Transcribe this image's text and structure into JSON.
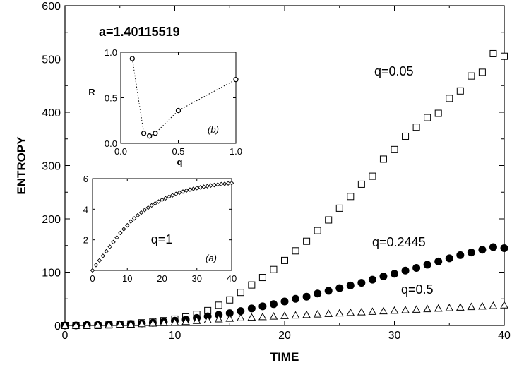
{
  "chart_data": [
    {
      "type": "scatter",
      "xlabel": "TIME",
      "ylabel": "ENTROPY",
      "xlim": [
        0,
        40
      ],
      "ylim": [
        0,
        600
      ],
      "xticks": [
        "0",
        "10",
        "20",
        "30",
        "40"
      ],
      "yticks": [
        "0",
        "100",
        "200",
        "300",
        "400",
        "500",
        "600"
      ],
      "parameter_label": "a=1.40115519",
      "grid": false,
      "series": [
        {
          "name": "q=0.05",
          "marker": "open-square",
          "x": [
            0,
            1,
            2,
            3,
            4,
            5,
            6,
            7,
            8,
            9,
            10,
            11,
            12,
            13,
            14,
            15,
            16,
            17,
            18,
            19,
            20,
            21,
            22,
            23,
            24,
            25,
            26,
            27,
            28,
            29,
            30,
            31,
            32,
            33,
            34,
            35,
            36,
            37,
            38,
            39,
            40
          ],
          "y": [
            0,
            0,
            0,
            0,
            1,
            2,
            3,
            5,
            7,
            9,
            12,
            16,
            21,
            28,
            38,
            48,
            62,
            76,
            90,
            105,
            122,
            140,
            158,
            178,
            198,
            220,
            242,
            265,
            280,
            312,
            330,
            355,
            372,
            390,
            398,
            426,
            440,
            468,
            475,
            510,
            505
          ]
        },
        {
          "name": "q=0.2445",
          "marker": "filled-circle",
          "x": [
            0,
            1,
            2,
            3,
            4,
            5,
            6,
            7,
            8,
            9,
            10,
            11,
            12,
            13,
            14,
            15,
            16,
            17,
            18,
            19,
            20,
            21,
            22,
            23,
            24,
            25,
            26,
            27,
            28,
            29,
            30,
            31,
            32,
            33,
            34,
            35,
            36,
            37,
            38,
            39,
            40
          ],
          "y": [
            0,
            0,
            1,
            1,
            2,
            2,
            3,
            4,
            5,
            7,
            9,
            11,
            14,
            17,
            20,
            23,
            27,
            32,
            36,
            40,
            45,
            50,
            54,
            60,
            65,
            70,
            75,
            80,
            86,
            92,
            97,
            103,
            108,
            114,
            120,
            126,
            132,
            137,
            142,
            147,
            145
          ]
        },
        {
          "name": "q=0.5",
          "marker": "open-triangle",
          "x": [
            0,
            1,
            2,
            3,
            4,
            5,
            6,
            7,
            8,
            9,
            10,
            11,
            12,
            13,
            14,
            15,
            16,
            17,
            18,
            19,
            20,
            21,
            22,
            23,
            24,
            25,
            26,
            27,
            28,
            29,
            30,
            31,
            32,
            33,
            34,
            35,
            36,
            37,
            38,
            39,
            40
          ],
          "y": [
            0,
            0,
            0,
            1,
            1,
            2,
            2,
            3,
            4,
            5,
            6,
            7,
            9,
            10,
            12,
            13,
            14,
            15,
            16,
            17,
            18,
            19,
            20,
            21,
            22,
            23,
            24,
            25,
            26,
            27,
            28,
            29,
            30,
            31,
            32,
            33,
            34,
            35,
            36,
            37,
            38
          ]
        }
      ]
    },
    {
      "type": "line",
      "panel_label": "(b)",
      "xlabel": "q",
      "ylabel": "R",
      "xlim": [
        0,
        1
      ],
      "ylim": [
        0,
        1
      ],
      "xticks": [
        "0.0",
        "0.5",
        "1.0"
      ],
      "yticks": [
        "0.0",
        "0.5",
        "1.0"
      ],
      "line_style": "dotted",
      "marker": "open-circle",
      "x": [
        0.1,
        0.2,
        0.25,
        0.3,
        0.5,
        1.0
      ],
      "y": [
        0.93,
        0.11,
        0.08,
        0.11,
        0.36,
        0.7
      ]
    },
    {
      "type": "scatter",
      "panel_label": "(a)",
      "annotation": "q=1",
      "xlim": [
        0,
        40
      ],
      "ylim": [
        0,
        6
      ],
      "xticks": [
        "0",
        "10",
        "20",
        "30",
        "40"
      ],
      "yticks": [
        "2",
        "4",
        "6"
      ],
      "marker": "open-diamond",
      "x": [
        0,
        1,
        2,
        3,
        4,
        5,
        6,
        7,
        8,
        9,
        10,
        11,
        12,
        13,
        14,
        15,
        16,
        17,
        18,
        19,
        20,
        21,
        22,
        23,
        24,
        25,
        26,
        27,
        28,
        29,
        30,
        31,
        32,
        33,
        34,
        35,
        36,
        37,
        38,
        39,
        40
      ],
      "y": [
        0,
        0.35,
        0.65,
        0.95,
        1.25,
        1.55,
        1.85,
        2.15,
        2.45,
        2.7,
        2.95,
        3.2,
        3.4,
        3.6,
        3.78,
        3.95,
        4.1,
        4.25,
        4.38,
        4.5,
        4.62,
        4.72,
        4.82,
        4.91,
        5.0,
        5.08,
        5.15,
        5.22,
        5.28,
        5.33,
        5.38,
        5.43,
        5.47,
        5.51,
        5.55,
        5.58,
        5.61,
        5.64,
        5.66,
        5.69,
        5.71
      ]
    }
  ]
}
